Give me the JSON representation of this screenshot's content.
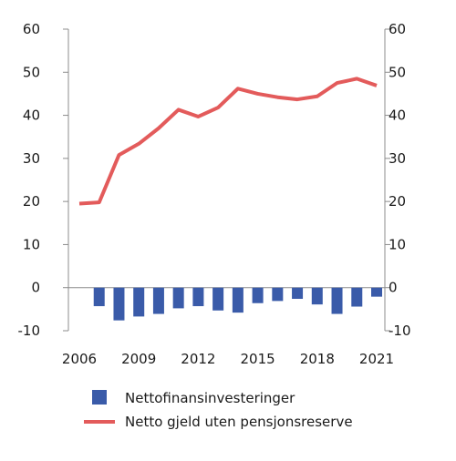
{
  "chart_data": {
    "type": "bar+line",
    "title": "",
    "xlabel": "",
    "ylabel": "",
    "ylim": [
      -10,
      60
    ],
    "yticks": [
      -10,
      0,
      10,
      20,
      30,
      40,
      50,
      60
    ],
    "ytick_labels": [
      "-10",
      "0",
      "10",
      "20",
      "30",
      "40",
      "50",
      "60"
    ],
    "x": [
      2006,
      2007,
      2008,
      2009,
      2010,
      2011,
      2012,
      2013,
      2014,
      2015,
      2016,
      2017,
      2018,
      2019,
      2020,
      2021
    ],
    "xtick_labels": [
      "2006",
      "2009",
      "2012",
      "2015",
      "2018",
      "2021"
    ],
    "xtick_values": [
      2006,
      2009,
      2012,
      2015,
      2018,
      2021
    ],
    "legend_position": "bottom",
    "grid": false,
    "series": [
      {
        "name": "Nettofinansinvesteringer",
        "type": "bar",
        "color": "#3a5ba9",
        "values": [
          null,
          -4.3,
          -7.6,
          -6.7,
          -6.1,
          -4.8,
          -4.3,
          -5.3,
          -5.8,
          -3.6,
          -3.1,
          -2.6,
          -3.9,
          -6.1,
          -4.4,
          -2.1
        ]
      },
      {
        "name": "Netto gjeld uten pensjonsreserve",
        "type": "line",
        "color": "#e35b5b",
        "values": [
          19.5,
          19.8,
          30.8,
          33.4,
          37.0,
          41.3,
          39.7,
          41.8,
          46.2,
          45.0,
          44.2,
          43.7,
          44.4,
          47.5,
          48.5,
          46.9
        ]
      }
    ]
  }
}
